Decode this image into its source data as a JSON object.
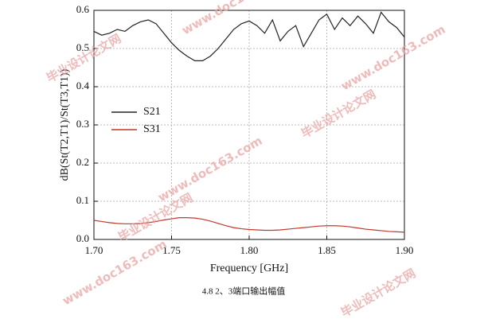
{
  "chart_data": {
    "type": "line",
    "xlabel": "Frequency [GHz]",
    "ylabel": "dB(St(T2,T1)/St(T3,T1))",
    "caption": "4.8 2、3端口输出幅值",
    "watermark": [
      "毕业设计论文网",
      "www.doc163.com"
    ],
    "x": [
      1.7,
      1.705,
      1.71,
      1.715,
      1.72,
      1.725,
      1.73,
      1.735,
      1.74,
      1.745,
      1.75,
      1.755,
      1.76,
      1.765,
      1.77,
      1.775,
      1.78,
      1.785,
      1.79,
      1.795,
      1.8,
      1.805,
      1.81,
      1.815,
      1.82,
      1.825,
      1.83,
      1.835,
      1.84,
      1.845,
      1.85,
      1.855,
      1.86,
      1.865,
      1.87,
      1.875,
      1.88,
      1.885,
      1.89,
      1.895,
      1.9
    ],
    "series": [
      {
        "name": "S21",
        "color": "#222222",
        "values": [
          0.545,
          0.535,
          0.54,
          0.55,
          0.545,
          0.56,
          0.57,
          0.575,
          0.565,
          0.54,
          0.515,
          0.495,
          0.48,
          0.468,
          0.468,
          0.48,
          0.5,
          0.525,
          0.55,
          0.565,
          0.572,
          0.56,
          0.54,
          0.575,
          0.52,
          0.545,
          0.56,
          0.505,
          0.54,
          0.575,
          0.59,
          0.55,
          0.58,
          0.56,
          0.585,
          0.565,
          0.54,
          0.595,
          0.57,
          0.555,
          0.53
        ]
      },
      {
        "name": "S31",
        "color": "#c0392b",
        "values": [
          0.05,
          0.047,
          0.044,
          0.042,
          0.041,
          0.041,
          0.042,
          0.044,
          0.047,
          0.051,
          0.054,
          0.057,
          0.057,
          0.056,
          0.053,
          0.048,
          0.042,
          0.036,
          0.031,
          0.028,
          0.026,
          0.025,
          0.024,
          0.024,
          0.025,
          0.027,
          0.029,
          0.031,
          0.033,
          0.035,
          0.036,
          0.036,
          0.035,
          0.033,
          0.03,
          0.027,
          0.025,
          0.023,
          0.021,
          0.02,
          0.019
        ]
      }
    ],
    "xlim": [
      1.7,
      1.9
    ],
    "xticks": [
      {
        "value": 1.7,
        "label": "1.70"
      },
      {
        "value": 1.75,
        "label": "1.75"
      },
      {
        "value": 1.8,
        "label": "1.80"
      },
      {
        "value": 1.85,
        "label": "1.85"
      },
      {
        "value": 1.9,
        "label": "1.90"
      }
    ],
    "ylim": [
      0,
      0.6
    ],
    "yticks": [
      {
        "value": 0,
        "label": "0.0"
      },
      0.1,
      0.2,
      0.3,
      0.4,
      0.5,
      0.6
    ],
    "grid": true,
    "legend": "left"
  }
}
